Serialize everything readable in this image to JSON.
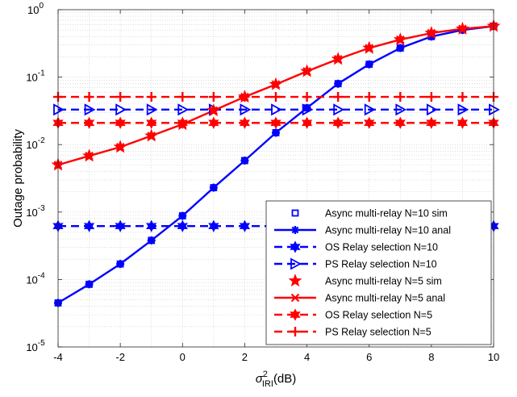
{
  "chart_data": {
    "type": "line",
    "xlabel": {
      "symbol": "σ",
      "sup": "2",
      "sub": "IRI",
      "unit": "(dB)"
    },
    "ylabel": "Outage probability",
    "xlim": [
      -4,
      10
    ],
    "ylim": [
      1e-05,
      1
    ],
    "yscale": "log",
    "grid": true,
    "legend_position": "bottom-right",
    "x_ticks": [
      -4,
      -2,
      0,
      2,
      4,
      6,
      8,
      10
    ],
    "x_tick_labels": [
      "-4",
      "-2",
      "0",
      "2",
      "4",
      "6",
      "8",
      "10"
    ],
    "y_ticks": [
      {
        "base": "10",
        "exp": "-5",
        "value": 1e-05
      },
      {
        "base": "10",
        "exp": "-4",
        "value": 0.0001
      },
      {
        "base": "10",
        "exp": "-3",
        "value": 0.001
      },
      {
        "base": "10",
        "exp": "-2",
        "value": 0.01
      },
      {
        "base": "10",
        "exp": "-1",
        "value": 0.1
      },
      {
        "base": "10",
        "exp": "0",
        "value": 1
      }
    ],
    "x": [
      -4,
      -3,
      -2,
      -1,
      0,
      1,
      2,
      3,
      4,
      5,
      6,
      7,
      8,
      9,
      10
    ],
    "series": [
      {
        "name": "Async multi-relay N=10 sim",
        "color": "#0000ff",
        "line": "none",
        "marker": "square",
        "values": [
          4.5e-05,
          8.5e-05,
          0.00017,
          0.00038,
          0.00088,
          0.0023,
          0.0058,
          0.015,
          0.035,
          0.08,
          0.155,
          0.27,
          0.4,
          0.5,
          0.57
        ]
      },
      {
        "name": "Async multi-relay N=10 anal",
        "color": "#0000ff",
        "line": "solid",
        "marker": "asterisk",
        "values": [
          4.5e-05,
          8.5e-05,
          0.00017,
          0.00038,
          0.00088,
          0.0023,
          0.0058,
          0.015,
          0.035,
          0.08,
          0.155,
          0.27,
          0.4,
          0.5,
          0.57
        ]
      },
      {
        "name": "OS Relay selection N=10",
        "color": "#0000ff",
        "line": "dashed",
        "marker": "hexagram",
        "values": [
          0.00062,
          0.00062,
          0.00062,
          0.00062,
          0.00062,
          0.00062,
          0.00062,
          0.00062,
          0.00062,
          0.00062,
          0.00062,
          0.00062,
          0.00062,
          0.00062,
          0.00062
        ]
      },
      {
        "name": "PS Relay selection N=10",
        "color": "#0000ff",
        "line": "dashed",
        "marker": "triangle-right",
        "values": [
          0.033,
          0.033,
          0.033,
          0.033,
          0.033,
          0.033,
          0.033,
          0.033,
          0.033,
          0.033,
          0.033,
          0.033,
          0.033,
          0.033,
          0.033
        ]
      },
      {
        "name": "Async multi-relay N=5 sim",
        "color": "#ff0000",
        "line": "none",
        "marker": "pentagram",
        "values": [
          0.005,
          0.0068,
          0.0092,
          0.0135,
          0.02,
          0.032,
          0.051,
          0.078,
          0.122,
          0.185,
          0.27,
          0.36,
          0.45,
          0.52,
          0.57
        ]
      },
      {
        "name": "Async multi-relay N=5 anal",
        "color": "#ff0000",
        "line": "solid",
        "marker": "x",
        "values": [
          0.005,
          0.0068,
          0.0092,
          0.0135,
          0.02,
          0.032,
          0.051,
          0.078,
          0.122,
          0.185,
          0.27,
          0.36,
          0.45,
          0.52,
          0.57
        ]
      },
      {
        "name": "OS Relay selection N=5",
        "color": "#ff0000",
        "line": "dashed",
        "marker": "hexagram",
        "values": [
          0.021,
          0.021,
          0.021,
          0.021,
          0.021,
          0.021,
          0.021,
          0.021,
          0.021,
          0.021,
          0.021,
          0.021,
          0.021,
          0.021,
          0.021
        ]
      },
      {
        "name": "PS Relay selection N=5",
        "color": "#ff0000",
        "line": "dashed",
        "marker": "plus",
        "values": [
          0.051,
          0.051,
          0.051,
          0.051,
          0.051,
          0.051,
          0.051,
          0.051,
          0.051,
          0.051,
          0.051,
          0.051,
          0.051,
          0.051,
          0.051
        ]
      }
    ]
  }
}
